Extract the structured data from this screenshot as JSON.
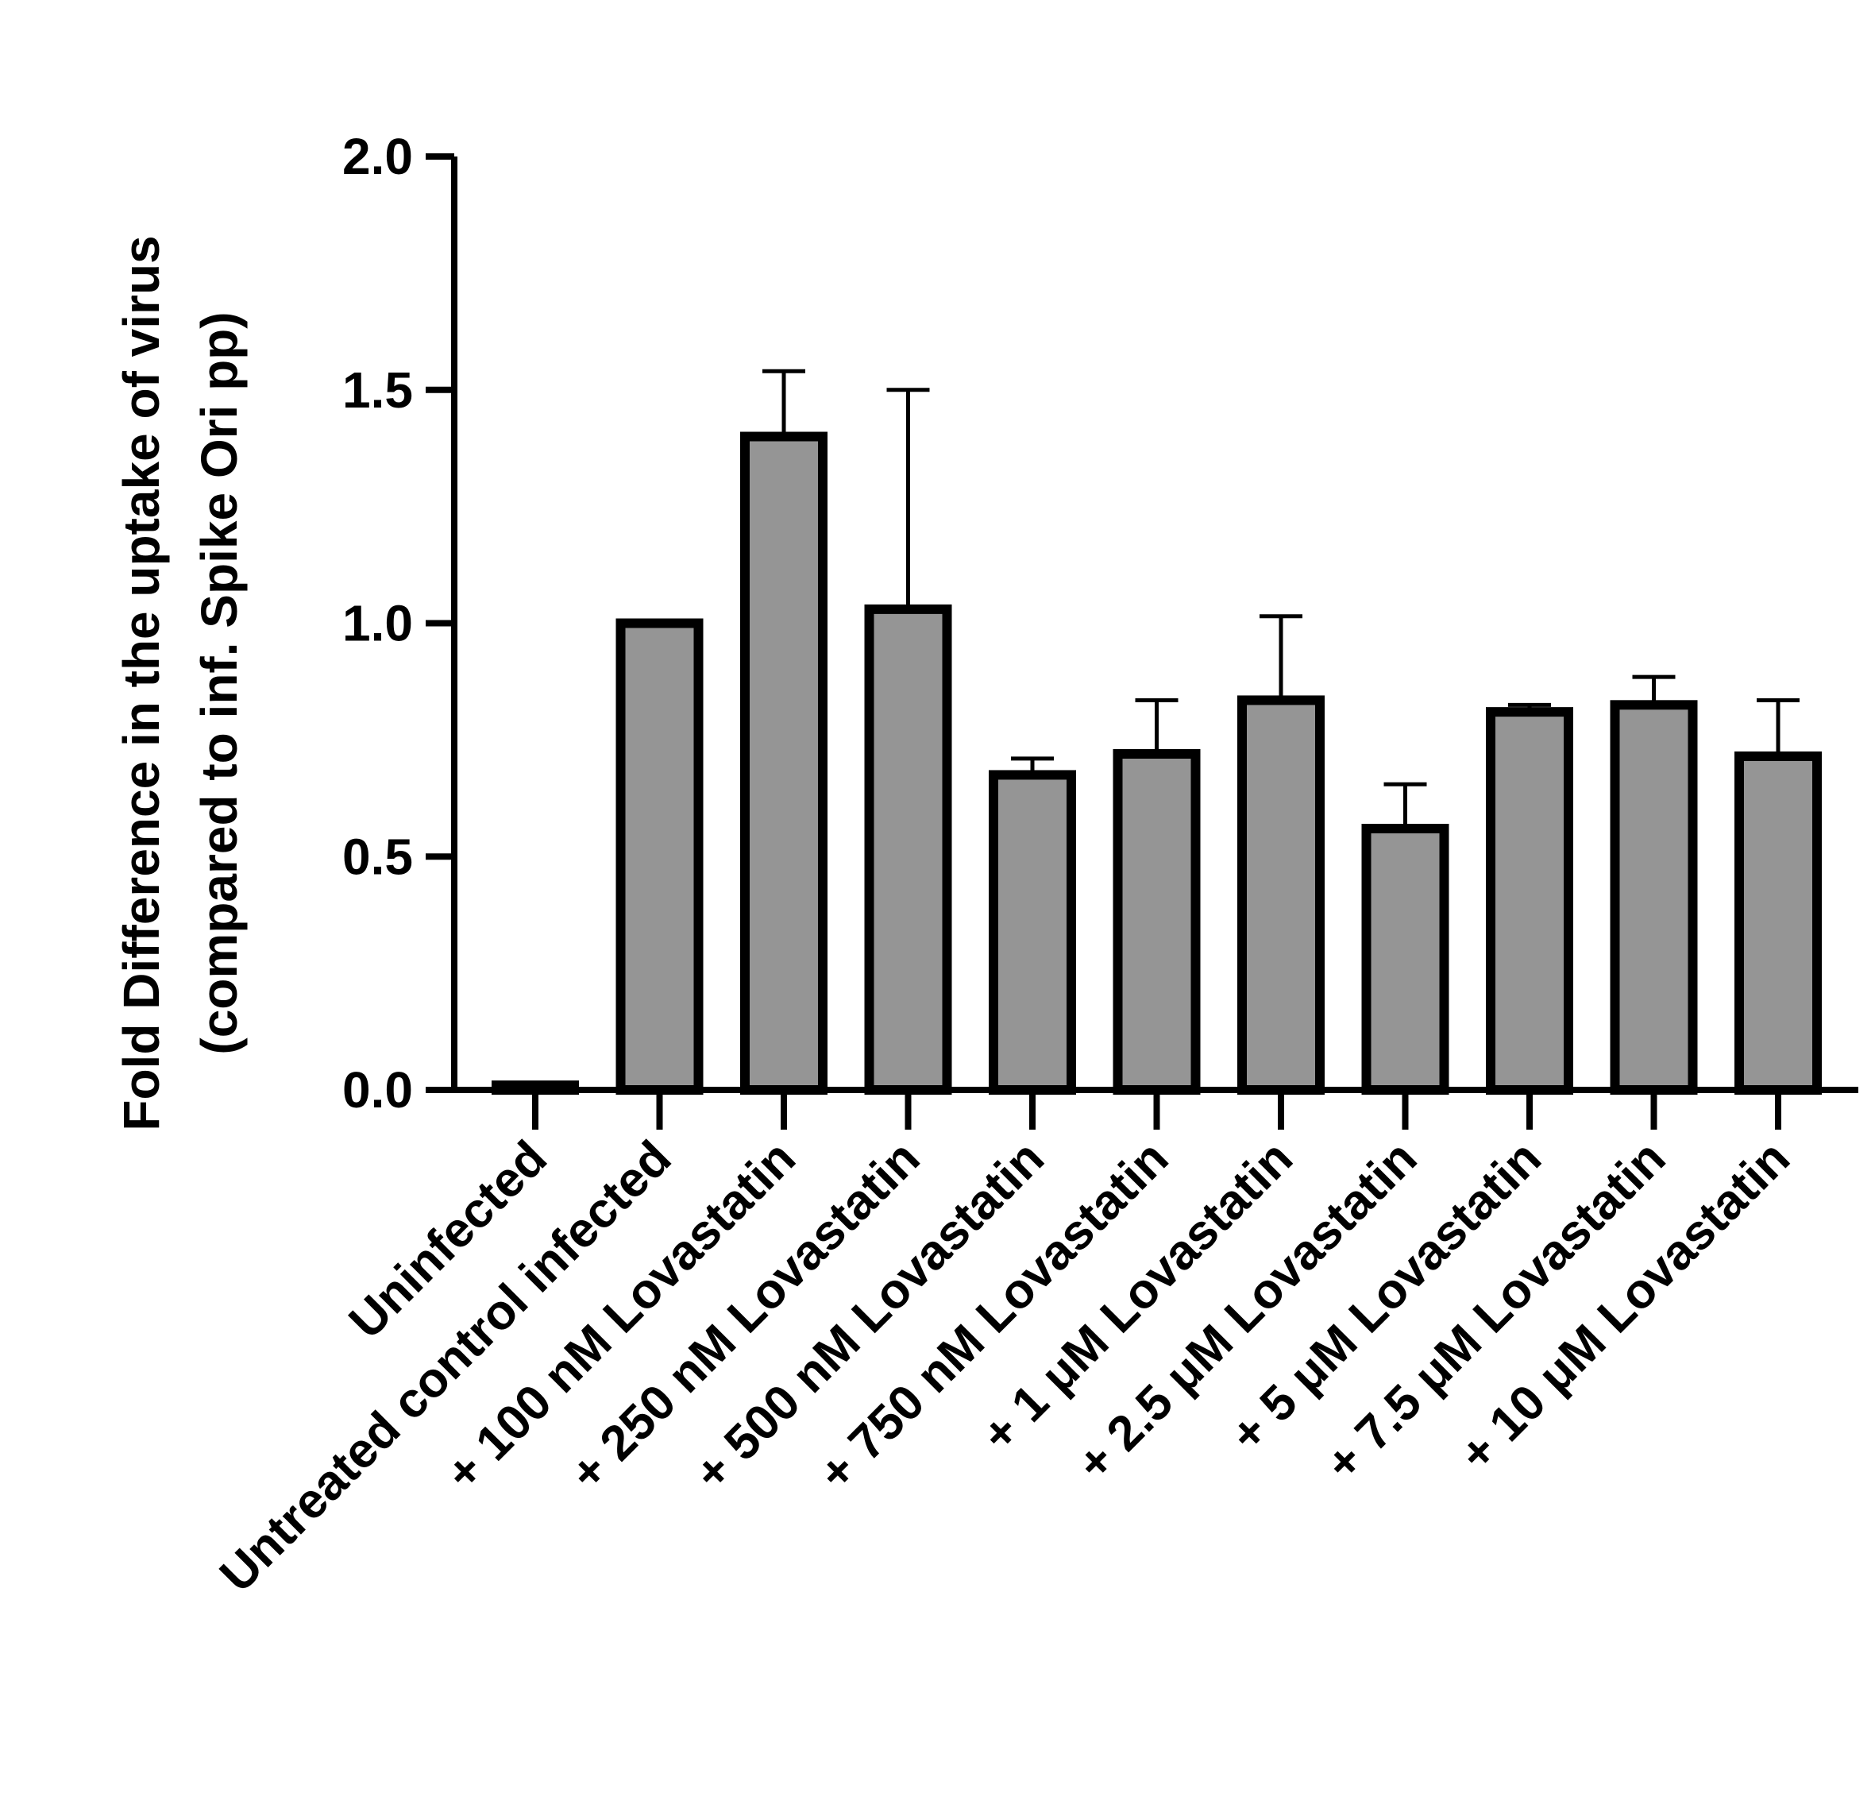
{
  "chart_data": {
    "type": "bar",
    "title": "",
    "xlabel": "",
    "ylabel": "Fold Difference in the uptake of virus",
    "ylabel_line2": "(compared to inf. Spike Ori pp)",
    "ylim": [
      0,
      2.0
    ],
    "yticks": [
      "0.0",
      "0.5",
      "1.0",
      "1.5",
      "2.0"
    ],
    "categories": [
      "Uninfected",
      "Untreated control infected",
      "+ 100 nM Lovastatin",
      "+ 250 nM Lovastatin",
      "+ 500 nM Lovastatin",
      "+ 750 nM Lovastatin",
      "+ 1 μM Lovastatin",
      "+ 2.5 μM Lovastatin",
      "+ 5 μM Lovastatin",
      "+ 7.5 μM Lovastatin",
      "+ 10 μM Lovastatin"
    ],
    "values": [
      0.01,
      1.0,
      1.4,
      1.03,
      0.675,
      0.72,
      0.835,
      0.56,
      0.81,
      0.825,
      0.715
    ],
    "error_upper": [
      0.0,
      0.0,
      0.14,
      0.47,
      0.035,
      0.115,
      0.18,
      0.095,
      0.015,
      0.06,
      0.12
    ],
    "colors": {
      "bar_fill": "#959595",
      "bar_stroke": "#000000",
      "axis": "#000000"
    }
  }
}
